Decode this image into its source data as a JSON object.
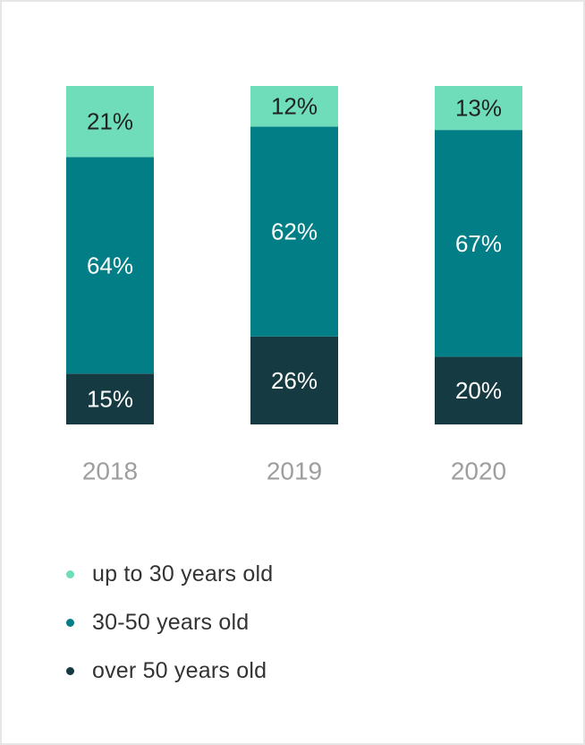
{
  "chart_data": {
    "type": "bar",
    "stacked": true,
    "orientation": "vertical",
    "categories": [
      "2018",
      "2019",
      "2020"
    ],
    "series": [
      {
        "name": "over 50 years old",
        "values": [
          15,
          26,
          20
        ],
        "labels": [
          "15%",
          "26%",
          "20%"
        ],
        "color": "#163a42"
      },
      {
        "name": "30-50 years old",
        "values": [
          64,
          62,
          67
        ],
        "labels": [
          "64%",
          "62%",
          "67%"
        ],
        "color": "#027f86"
      },
      {
        "name": "up to 30 years old",
        "values": [
          21,
          12,
          13
        ],
        "labels": [
          "21%",
          "12%",
          "13%"
        ],
        "color": "#6fddb9"
      }
    ],
    "legend": {
      "position": "bottom-left",
      "items": [
        {
          "label": "up to 30 years old",
          "color": "#6fddb9"
        },
        {
          "label": "30-50 years old",
          "color": "#027f86"
        },
        {
          "label": "over 50 years old",
          "color": "#163a42"
        }
      ]
    },
    "label_colors": {
      "light_segment": "#222222",
      "dark_segment": "#ffffff"
    },
    "tick_color": "#9e9e9e",
    "grid": false
  }
}
